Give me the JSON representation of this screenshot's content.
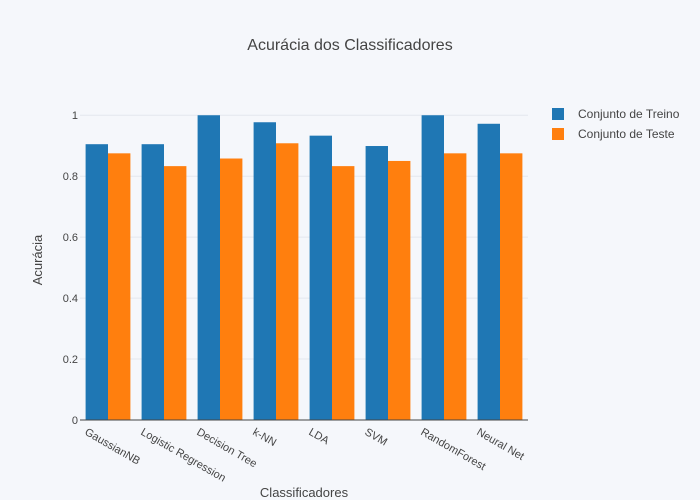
{
  "chart_data": {
    "type": "bar",
    "title": "Acurácia dos Classificadores",
    "xlabel": "Classificadores",
    "ylabel": "Acurácia",
    "categories": [
      "GaussianNB",
      "Logistic Regression",
      "Decision Tree",
      "k-NN",
      "LDA",
      "SVM",
      "RandomForest",
      "Neural Net"
    ],
    "series": [
      {
        "name": "Conjunto de Treino",
        "color": "#1f77b4",
        "values": [
          0.905,
          0.905,
          1.0,
          0.977,
          0.933,
          0.899,
          1.0,
          0.972
        ]
      },
      {
        "name": "Conjunto de Teste",
        "color": "#ff7f0e",
        "values": [
          0.875,
          0.833,
          0.858,
          0.908,
          0.833,
          0.85,
          0.875,
          0.875
        ]
      }
    ],
    "yticks": [
      0,
      0.2,
      0.4,
      0.6,
      0.8,
      1
    ],
    "ytick_labels": [
      "0",
      "0.2",
      "0.4",
      "0.6",
      "0.8",
      "1"
    ],
    "ylim": [
      0,
      1.05
    ],
    "grid": true,
    "legend_position": "top-right"
  }
}
